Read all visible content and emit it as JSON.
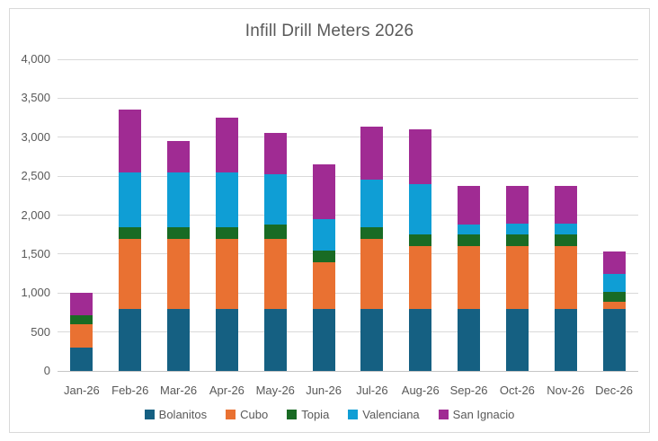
{
  "title": "Infill Drill Meters 2026",
  "chart_data": {
    "type": "bar",
    "stacked": true,
    "title": "Infill Drill Meters 2026",
    "xlabel": "",
    "ylabel": "",
    "categories": [
      "Jan-26",
      "Feb-26",
      "Mar-26",
      "Apr-26",
      "May-26",
      "Jun-26",
      "Jul-26",
      "Aug-26",
      "Sep-26",
      "Oct-26",
      "Nov-26",
      "Dec-26"
    ],
    "series": [
      {
        "name": "Bolanitos",
        "color": "#156082",
        "values": [
          300,
          800,
          800,
          800,
          800,
          800,
          800,
          800,
          800,
          800,
          800,
          800
        ]
      },
      {
        "name": "Cubo",
        "color": "#E97132",
        "values": [
          300,
          900,
          900,
          900,
          900,
          600,
          900,
          800,
          800,
          800,
          800,
          90
        ]
      },
      {
        "name": "Topia",
        "color": "#196B24",
        "values": [
          120,
          150,
          150,
          150,
          175,
          150,
          150,
          150,
          150,
          150,
          150,
          120
        ]
      },
      {
        "name": "Valenciana",
        "color": "#0F9ED5",
        "values": [
          0,
          700,
          700,
          700,
          650,
          400,
          600,
          650,
          130,
          140,
          140,
          230
        ]
      },
      {
        "name": "San Ignacio",
        "color": "#A02B93",
        "values": [
          280,
          800,
          400,
          700,
          525,
          700,
          680,
          700,
          500,
          490,
          490,
          290
        ]
      }
    ],
    "totals": [
      1000,
      3350,
      2950,
      3250,
      3050,
      2650,
      3130,
      3100,
      2380,
      2380,
      2380,
      1530
    ],
    "ylim": [
      0,
      4000
    ],
    "ytick_step": 500,
    "ytick_labels": [
      "0",
      "500",
      "1,000",
      "1,500",
      "2,000",
      "2,500",
      "3,000",
      "3,500",
      "4,000"
    ],
    "grid": true,
    "legend_position": "bottom"
  },
  "colors": {
    "text": "#595959",
    "gridline": "#D9D9D9",
    "axis_line": "#C6C6C6",
    "frame_border": "#D9D9D9",
    "background": "#FFFFFF"
  }
}
